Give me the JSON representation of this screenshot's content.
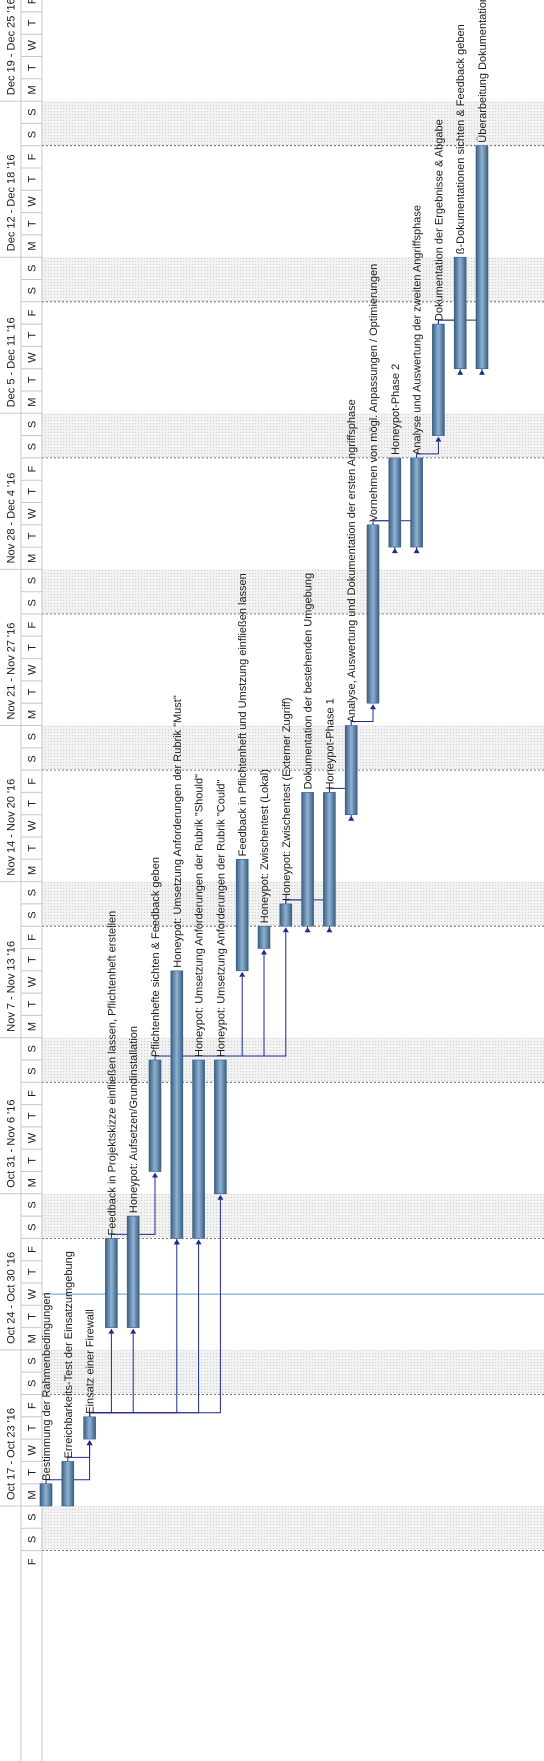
{
  "chart_data": {
    "type": "gantt",
    "orientation": "rotated-90-ccw",
    "weeks": [
      {
        "label": "Oct 17 - Oct 23 '16",
        "days": [
          "M",
          "T",
          "W",
          "T",
          "F",
          "S",
          "S"
        ]
      },
      {
        "label": "Oct 24 - Oct 30 '16",
        "days": [
          "M",
          "T",
          "W",
          "T",
          "F",
          "S",
          "S"
        ]
      },
      {
        "label": "Oct 31 - Nov 6 '16",
        "days": [
          "M",
          "T",
          "W",
          "T",
          "F",
          "S",
          "S"
        ]
      },
      {
        "label": "Nov 7 - Nov 13 '16",
        "days": [
          "M",
          "T",
          "W",
          "T",
          "F",
          "S",
          "S"
        ]
      },
      {
        "label": "Nov 14 - Nov 20 '16",
        "days": [
          "M",
          "T",
          "W",
          "T",
          "F",
          "S",
          "S"
        ]
      },
      {
        "label": "Nov 21 - Nov 27 '16",
        "days": [
          "M",
          "T",
          "W",
          "T",
          "F",
          "S",
          "S"
        ]
      },
      {
        "label": "Nov 28 - Dec 4 '16",
        "days": [
          "M",
          "T",
          "W",
          "T",
          "F",
          "S",
          "S"
        ]
      },
      {
        "label": "Dec 5 - Dec 11 '16",
        "days": [
          "M",
          "T",
          "W",
          "T",
          "F",
          "S",
          "S"
        ]
      },
      {
        "label": "Dec 12 - Dec 18 '16",
        "days": [
          "M",
          "T",
          "W",
          "T",
          "F",
          "S",
          "S"
        ]
      },
      {
        "label": "Dec 19 - Dec 25 '16",
        "days": [
          "M",
          "T",
          "W",
          "T",
          "F",
          "S",
          "S"
        ]
      }
    ],
    "leading_days": [
      "F",
      "S",
      "S"
    ],
    "trailing_days": [
      "F"
    ],
    "today_line_date": "2016-10-26",
    "tasks": [
      {
        "name": "Bestimmung der Rahmenbedingungen",
        "start": "2016-10-17",
        "end": "2016-10-18"
      },
      {
        "name": "Erreichbarkeits-Test der Einsatzumgebung",
        "start": "2016-10-17",
        "end": "2016-10-19"
      },
      {
        "name": "Einsatz einer Firewall",
        "start": "2016-10-20",
        "end": "2016-10-21"
      },
      {
        "name": "Feedback in Projektskizze einfließen lassen, Pflichtenheft erstellen",
        "start": "2016-10-25",
        "end": "2016-10-29"
      },
      {
        "name": "Honeypot: Aufsetzen/Grundinstallation",
        "start": "2016-10-25",
        "end": "2016-10-30"
      },
      {
        "name": "Pflichtenhefte sichten & Feedback geben",
        "start": "2016-11-01",
        "end": "2016-11-06"
      },
      {
        "name": "Honeypot: Umsetzung Anforderungen der Rubrik \"Must\"",
        "start": "2016-10-29",
        "end": "2016-11-10"
      },
      {
        "name": "Honeypot: Umsetzung Anforderungen der Rubrik \"Should\"",
        "start": "2016-10-29",
        "end": "2016-11-06"
      },
      {
        "name": "Honeypot: Umsetzung Anforderungen der Rubrik \"Could\"",
        "start": "2016-10-31",
        "end": "2016-11-06"
      },
      {
        "name": "Feedback in Pflichtenheft und Umstzung einfließen lassen",
        "start": "2016-11-10",
        "end": "2016-11-15"
      },
      {
        "name": "Honeypot: Zwischentest (Lokal)",
        "start": "2016-11-11",
        "end": "2016-11-12"
      },
      {
        "name": "Honeypot: Zwischentest (Externer Zugriff)",
        "start": "2016-11-12",
        "end": "2016-11-13"
      },
      {
        "name": "Dokumentation der bestehenden Umgebung",
        "start": "2016-11-12",
        "end": "2016-11-18"
      },
      {
        "name": "Honeypot-Phase 1",
        "start": "2016-11-12",
        "end": "2016-11-18"
      },
      {
        "name": "Analyse, Auswertung und Dokumentation der ersten Angriffsphase",
        "start": "2016-11-17",
        "end": "2016-11-21"
      },
      {
        "name": "Vornehmen von mögl. Anpassungen / Optimierungen",
        "start": "2016-11-22",
        "end": "2016-11-30"
      },
      {
        "name": "Honeypot-Phase 2",
        "start": "2016-11-29",
        "end": "2016-12-03"
      },
      {
        "name": "Analyse und Auswertung der zweiten Angriffsphase",
        "start": "2016-11-29",
        "end": "2016-12-03"
      },
      {
        "name": "Dokumentation der Ergebnisse & Abgabe",
        "start": "2016-12-04",
        "end": "2016-12-09"
      },
      {
        "name": "ß-Dokumentationen sichten & Feedback geben",
        "start": "2016-12-07",
        "end": "2016-12-12"
      },
      {
        "name": "Überarbeitung Dokumentation",
        "start": "2016-12-07",
        "end": "2016-12-17"
      }
    ],
    "dependencies": [
      [
        0,
        2
      ],
      [
        1,
        2
      ],
      [
        2,
        3
      ],
      [
        2,
        4
      ],
      [
        2,
        6
      ],
      [
        2,
        7
      ],
      [
        2,
        8
      ],
      [
        3,
        5
      ],
      [
        5,
        6
      ],
      [
        5,
        9
      ],
      [
        5,
        10
      ],
      [
        5,
        11
      ],
      [
        11,
        12
      ],
      [
        11,
        13
      ],
      [
        13,
        14
      ],
      [
        14,
        15
      ],
      [
        15,
        16
      ],
      [
        15,
        17
      ],
      [
        17,
        18
      ],
      [
        18,
        19
      ],
      [
        18,
        20
      ]
    ],
    "colors": {
      "bar": "#4f7ca6",
      "bar_highlight": "#8fb2d3",
      "bar_border": "#3a5f82",
      "link": "#1f2b8c",
      "today_line": "#7ab0da",
      "weekend": "#ececec",
      "grid": "#c8c8c8"
    }
  }
}
